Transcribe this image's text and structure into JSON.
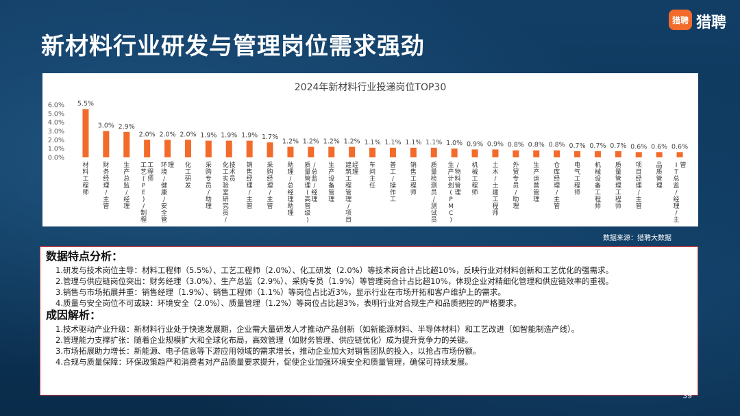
{
  "slide": {
    "title": "新材料行业研发与管理岗位需求强劲",
    "page_number": "39"
  },
  "logo": {
    "mark_text": "猎聘",
    "brand_name": "猎聘"
  },
  "source_note": "数据来源：猎聘大数据",
  "analysis": {
    "features_title": "数据特点分析：",
    "features": [
      "1.研发与技术岗位主导：材料工程师（5.5%）、工艺工程师（2.0%）、化工研发（2.0%）等技术岗合计占比超10%，反映行业对材料创新和工艺优化的强需求。",
      "2.管理与供应链岗位突出：财务经理（3.0%）、生产总监（2.9%）、采购专员（1.9%）等管理岗合计占比超10%，体现企业对精细化管理和供应链效率的重视。",
      "3.销售与市场拓展并重：销售经理（1.9%）、销售工程师（1.1%）等岗位占比近3%，显示行业在市场开拓和客户维护上的需求。",
      "4.质量与安全岗位不可或缺：环境安全（2.0%）、质量管理（1.2%）等岗位占比超3%，表明行业对合规生产和品质把控的严格要求。"
    ],
    "causes_title": "成因解析：",
    "causes": [
      "1.技术驱动产业升级：新材料行业处于快速发展期，企业需大量研发人才推动产品创新（如新能源材料、半导体材料）和工艺改进（如智能制造产线）。",
      "2.管理能力支撑扩张：随着企业规模扩大和全球化布局，高效管理（如财务管理、供应链优化）成为提升竞争力的关键。",
      "3.市场拓展助力增长：新能源、电子信息等下游应用领域的需求增长，推动企业加大对销售团队的投入，以抢占市场份额。",
      "4.合规与质量保障：环保政策趋严和消费者对产品质量要求提升，促使企业加强环境安全和质量管理，确保可持续发展。"
    ]
  },
  "chart_data": {
    "type": "bar",
    "title": "2024年新材料行业投递岗位TOP30",
    "xlabel": "",
    "ylabel": "",
    "ylim": [
      0,
      6
    ],
    "yticks": [
      "0.0%",
      "1.0%",
      "2.0%",
      "3.0%",
      "4.0%",
      "5.0%",
      "6.0%"
    ],
    "grid": false,
    "legend": "none",
    "bar_color": "#f26b2a",
    "categories": [
      "材料工程师",
      "财务经理/主管",
      "生产总监/经理",
      "工艺(PE)/制程工程师",
      "环境/健康/安全管理",
      "化工研发",
      "采购专员/助理",
      "化工实验室研究员/技术员",
      "销售经理/主管",
      "采购经理/主管",
      "助理/总经理助理",
      "质量管理(高管级)/总监/经理",
      "生产设备管理",
      "建筑工程管理/项目经理",
      "车间主任",
      "普工/操作工",
      "销售工程师",
      "质量检测员/测试员",
      "生产计划(PMC)/物料管理",
      "机械工程师",
      "土木/土建工程师",
      "外贸专员/助理",
      "生产运营管理",
      "仓库经理/主管",
      "电气工程师",
      "机械设备工程师",
      "质量管理工程师",
      "项目经理/主管",
      "品质管理",
      "IT总监/经理/主管"
    ],
    "values": [
      5.5,
      3.0,
      2.9,
      2.0,
      2.0,
      2.0,
      1.9,
      1.9,
      1.9,
      1.7,
      1.2,
      1.2,
      1.2,
      1.2,
      1.1,
      1.1,
      1.1,
      1.1,
      1.0,
      0.9,
      0.9,
      0.8,
      0.8,
      0.8,
      0.7,
      0.7,
      0.7,
      0.6,
      0.6,
      0.6
    ],
    "value_labels": [
      "5.5%",
      "3.0%",
      "2.9%",
      "2.0%",
      "2.0%",
      "2.0%",
      "1.9%",
      "1.9%",
      "1.9%",
      "1.7%",
      "1.2%",
      "1.2%",
      "1.2%",
      "1.2%",
      "1.1%",
      "1.1%",
      "1.1%",
      "1.1%",
      "1.0%",
      "0.9%",
      "0.9%",
      "0.8%",
      "0.8%",
      "0.8%",
      "0.7%",
      "0.7%",
      "0.7%",
      "0.6%",
      "0.6%",
      "0.6%"
    ]
  }
}
